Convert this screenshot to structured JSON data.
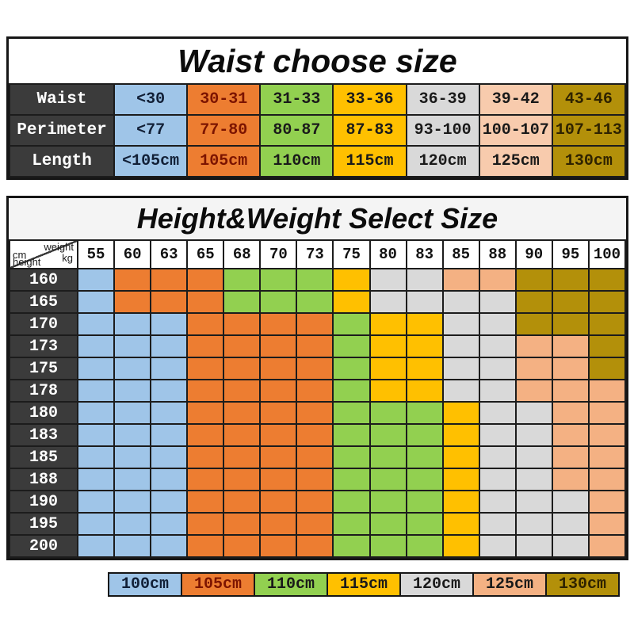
{
  "palette": {
    "B": "#9fc5e8",
    "O": "#ed7d31",
    "G": "#92d050",
    "Y": "#ffc000",
    "E": "#d9d9d9",
    "P": "#f4b183",
    "PL": "#f8cbad",
    "K": "#b3900a",
    "header_dark": "#3b3b3b",
    "hw_title_bg": "#f4f4f4",
    "border": "#1c1c1c"
  },
  "text_colors": {
    "default": "#1a1a1a",
    "O": "#7c1400",
    "B": "#122037",
    "K": "#2f2300"
  },
  "waist_table": {
    "title": "Waist choose size",
    "column_colors": [
      "B",
      "O",
      "G",
      "Y",
      "E",
      "PL",
      "K"
    ],
    "rows": [
      {
        "label": "Waist",
        "cells": [
          "<30",
          "30-31",
          "31-33",
          "33-36",
          "36-39",
          "39-42",
          "43-46"
        ]
      },
      {
        "label": "Perimeter",
        "cells": [
          "<77",
          "77-80",
          "80-87",
          "87-83",
          "93-100",
          "100-107",
          "107-113"
        ]
      },
      {
        "label": "Length",
        "cells": [
          "<105cm",
          "105cm",
          "110cm",
          "115cm",
          "120cm",
          "125cm",
          "130cm"
        ]
      }
    ]
  },
  "hw_table": {
    "title": "Height&Weight Select Size",
    "corner": {
      "top_left": "cm",
      "top_right": "weight",
      "bottom_left": "height",
      "bottom_right": "kg"
    },
    "weights": [
      "55",
      "60",
      "63",
      "65",
      "68",
      "70",
      "73",
      "75",
      "80",
      "83",
      "85",
      "88",
      "90",
      "95",
      "100"
    ],
    "heights": [
      "160",
      "165",
      "170",
      "173",
      "175",
      "178",
      "180",
      "183",
      "185",
      "188",
      "190",
      "195",
      "200"
    ],
    "grid": [
      "BOOOGGGYEEPPKKK",
      "BOOOGGGYEEEEKKK",
      "BBBOOOOGYYEEKKK",
      "BBBOOOOGYYEEPPK",
      "BBBOOOOGYYEEPPK",
      "BBBOOOOGYYEEPPP",
      "BBBOOOOGGGYEEPP",
      "BBBOOOOGGGYEEPP",
      "BBBOOOOGGGYEEPP",
      "BBBOOOOGGGYEEPP",
      "BBBOOOOGGGYEEEP",
      "BBBOOOOGGGYEEEP",
      "BBBOOOOGGGYEEEP"
    ]
  },
  "legend": [
    {
      "label": "100cm",
      "color_key": "B"
    },
    {
      "label": "105cm",
      "color_key": "O"
    },
    {
      "label": "110cm",
      "color_key": "G"
    },
    {
      "label": "115cm",
      "color_key": "Y"
    },
    {
      "label": "120cm",
      "color_key": "E"
    },
    {
      "label": "125cm",
      "color_key": "P"
    },
    {
      "label": "130cm",
      "color_key": "K"
    }
  ],
  "chart_data": [
    {
      "type": "table",
      "title": "Waist choose size",
      "rows": [
        {
          "label": "Waist",
          "values": [
            "<30",
            "30-31",
            "31-33",
            "33-36",
            "36-39",
            "39-42",
            "43-46"
          ]
        },
        {
          "label": "Perimeter",
          "values": [
            "<77",
            "77-80",
            "80-87",
            "87-83",
            "93-100",
            "100-107",
            "107-113"
          ]
        },
        {
          "label": "Length",
          "values": [
            "<105cm",
            "105cm",
            "110cm",
            "115cm",
            "120cm",
            "125cm",
            "130cm"
          ]
        }
      ]
    },
    {
      "type": "heatmap",
      "title": "Height&Weight Select Size",
      "xlabel": "weight kg",
      "ylabel": "height cm",
      "x": [
        55,
        60,
        63,
        65,
        68,
        70,
        73,
        75,
        80,
        83,
        85,
        88,
        90,
        95,
        100
      ],
      "y": [
        160,
        165,
        170,
        173,
        175,
        178,
        180,
        183,
        185,
        188,
        190,
        195,
        200
      ],
      "rows_encoded": [
        "BOOOGGGYEEPPKKK",
        "BOOOGGGYEEEEKKK",
        "BBBOOOOGYYEEKKK",
        "BBBOOOOGYYEEPPK",
        "BBBOOOOGYYEEPPK",
        "BBBOOOOGYYEEPPP",
        "BBBOOOOGGGYEEPP",
        "BBBOOOOGGGYEEPP",
        "BBBOOOOGGGYEEPP",
        "BBBOOOOGGGYEEPP",
        "BBBOOOOGGGYEEEP",
        "BBBOOOOGGGYEEEP",
        "BBBOOOOGGGYEEEP"
      ],
      "code_map": {
        "B": "100cm",
        "O": "105cm",
        "G": "110cm",
        "Y": "115cm",
        "E": "120cm",
        "P": "125cm",
        "K": "130cm"
      },
      "legend": [
        "100cm",
        "105cm",
        "110cm",
        "115cm",
        "120cm",
        "125cm",
        "130cm"
      ],
      "legend_position": "bottom",
      "grid": "on"
    }
  ]
}
